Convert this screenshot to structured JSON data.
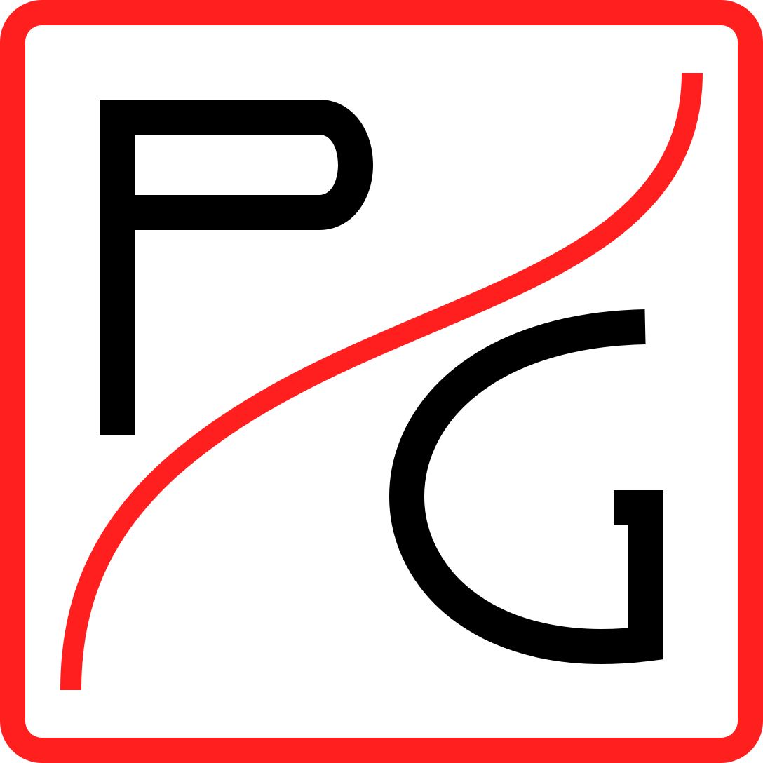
{
  "logo": {
    "letters": [
      "P",
      "G"
    ],
    "colors": {
      "frame": "#ff1f1f",
      "curve": "#ff1f1f",
      "glyph": "#000000",
      "background": "#ffffff"
    },
    "icon": "pg-monogram-logo"
  }
}
